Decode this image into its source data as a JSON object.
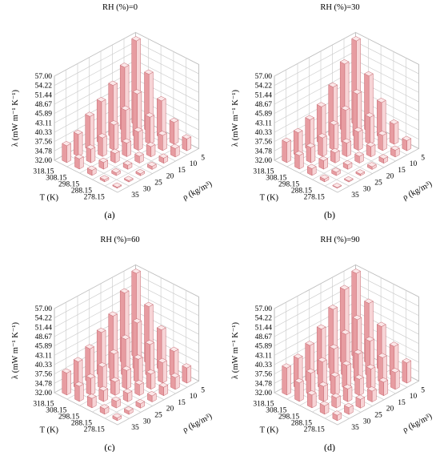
{
  "figure": {
    "chart_data": [
      {
        "type": "bar3d",
        "caption": "(a)",
        "title": "RH (%)=0",
        "zlabel": "λ (mW m⁻¹ K⁻¹)",
        "xlabel": "ρ (kg/m³)",
        "ylabel": "T (K)",
        "rho": [
          5,
          10,
          15,
          20,
          25,
          30,
          35
        ],
        "T": [
          318.15,
          308.15,
          298.15,
          288.15,
          278.15
        ],
        "z_ticks": [
          "32.00",
          "34.78",
          "37.56",
          "40.33",
          "43.11",
          "45.89",
          "48.67",
          "51.44",
          "54.22",
          "57.00"
        ],
        "zlim": [
          32.0,
          57.0
        ],
        "values_by_T": [
          [
            57.0,
            51.0,
            47.5,
            44.5,
            42.0,
            38.5,
            37.0
          ],
          [
            49.0,
            45.0,
            42.0,
            39.5,
            37.5,
            36.0,
            35.0
          ],
          [
            43.0,
            40.0,
            37.5,
            36.0,
            34.8,
            34.0,
            33.5
          ],
          [
            38.5,
            36.5,
            35.0,
            34.0,
            33.2,
            32.8,
            32.6
          ],
          [
            35.5,
            34.5,
            33.5,
            32.9,
            32.6,
            32.4,
            32.3
          ]
        ]
      },
      {
        "type": "bar3d",
        "caption": "(b)",
        "title": "RH (%)=30",
        "zlabel": "λ (mW m⁻¹ K⁻¹)",
        "xlabel": "ρ (kg/m³)",
        "ylabel": "T (K)",
        "rho": [
          5,
          10,
          15,
          20,
          25,
          30,
          35
        ],
        "T": [
          318.15,
          308.15,
          298.15,
          288.15,
          278.15
        ],
        "z_ticks": [
          "32.00",
          "34.78",
          "37.56",
          "40.33",
          "43.11",
          "45.89",
          "48.67",
          "51.44",
          "54.22",
          "57.00"
        ],
        "zlim": [
          32.0,
          57.0
        ],
        "values_by_T": [
          [
            57.0,
            52.0,
            47.0,
            43.0,
            41.0,
            39.0,
            38.0
          ],
          [
            48.5,
            45.0,
            42.0,
            39.5,
            37.5,
            36.5,
            36.0
          ],
          [
            42.5,
            40.0,
            37.5,
            36.0,
            35.0,
            34.5,
            34.0
          ],
          [
            38.0,
            36.5,
            35.0,
            34.0,
            33.3,
            33.0,
            32.8
          ],
          [
            35.0,
            34.0,
            33.3,
            32.8,
            32.5,
            32.3,
            32.2
          ]
        ]
      },
      {
        "type": "bar3d",
        "caption": "(c)",
        "title": "RH (%)=60",
        "zlabel": "λ (mW m⁻¹ K⁻¹)",
        "xlabel": "ρ (kg/m³)",
        "ylabel": "T (K)",
        "rho": [
          5,
          10,
          15,
          20,
          25,
          30,
          35
        ],
        "T": [
          318.15,
          308.15,
          298.15,
          288.15,
          278.15
        ],
        "z_ticks": [
          "32.00",
          "34.78",
          "37.56",
          "40.33",
          "43.11",
          "45.89",
          "48.67",
          "51.44",
          "54.22",
          "57.00"
        ],
        "zlim": [
          32.0,
          57.0
        ],
        "values_by_T": [
          [
            57.0,
            53.0,
            48.0,
            45.0,
            42.0,
            40.0,
            38.5
          ],
          [
            49.0,
            46.0,
            43.0,
            40.5,
            38.5,
            37.0,
            36.5
          ],
          [
            44.0,
            41.5,
            39.0,
            37.5,
            36.0,
            35.2,
            34.8
          ],
          [
            39.5,
            38.0,
            36.5,
            35.2,
            34.5,
            34.0,
            33.6
          ],
          [
            36.5,
            35.5,
            34.5,
            33.8,
            33.3,
            33.0,
            32.8
          ]
        ]
      },
      {
        "type": "bar3d",
        "caption": "(d)",
        "title": "RH (%)=90",
        "zlabel": "λ (mW m⁻¹ K⁻¹)",
        "xlabel": "ρ (kg/m³)",
        "ylabel": "T (K)",
        "rho": [
          5,
          10,
          15,
          20,
          25,
          30,
          35
        ],
        "T": [
          318.15,
          308.15,
          298.15,
          288.15,
          278.15
        ],
        "z_ticks": [
          "32.00",
          "34.78",
          "37.56",
          "40.33",
          "43.11",
          "45.89",
          "48.67",
          "51.44",
          "54.22",
          "57.00"
        ],
        "zlim": [
          32.0,
          57.0
        ],
        "values_by_T": [
          [
            57.0,
            54.0,
            50.0,
            46.0,
            43.0,
            41.0,
            40.0
          ],
          [
            50.0,
            47.0,
            44.5,
            42.0,
            40.0,
            38.5,
            37.5
          ],
          [
            45.0,
            42.5,
            40.5,
            39.0,
            37.5,
            36.5,
            35.8
          ],
          [
            41.0,
            39.5,
            38.0,
            36.8,
            35.8,
            35.0,
            34.5
          ],
          [
            38.0,
            37.0,
            36.0,
            35.2,
            34.6,
            34.0,
            33.6
          ]
        ]
      }
    ],
    "colors": {
      "bar_front": "#f7d4d6",
      "bar_side": "#e79ca1",
      "bar_top": "#fbe7e8",
      "bar_edge": "#c76a72",
      "grid": "#c9c9c9"
    }
  }
}
